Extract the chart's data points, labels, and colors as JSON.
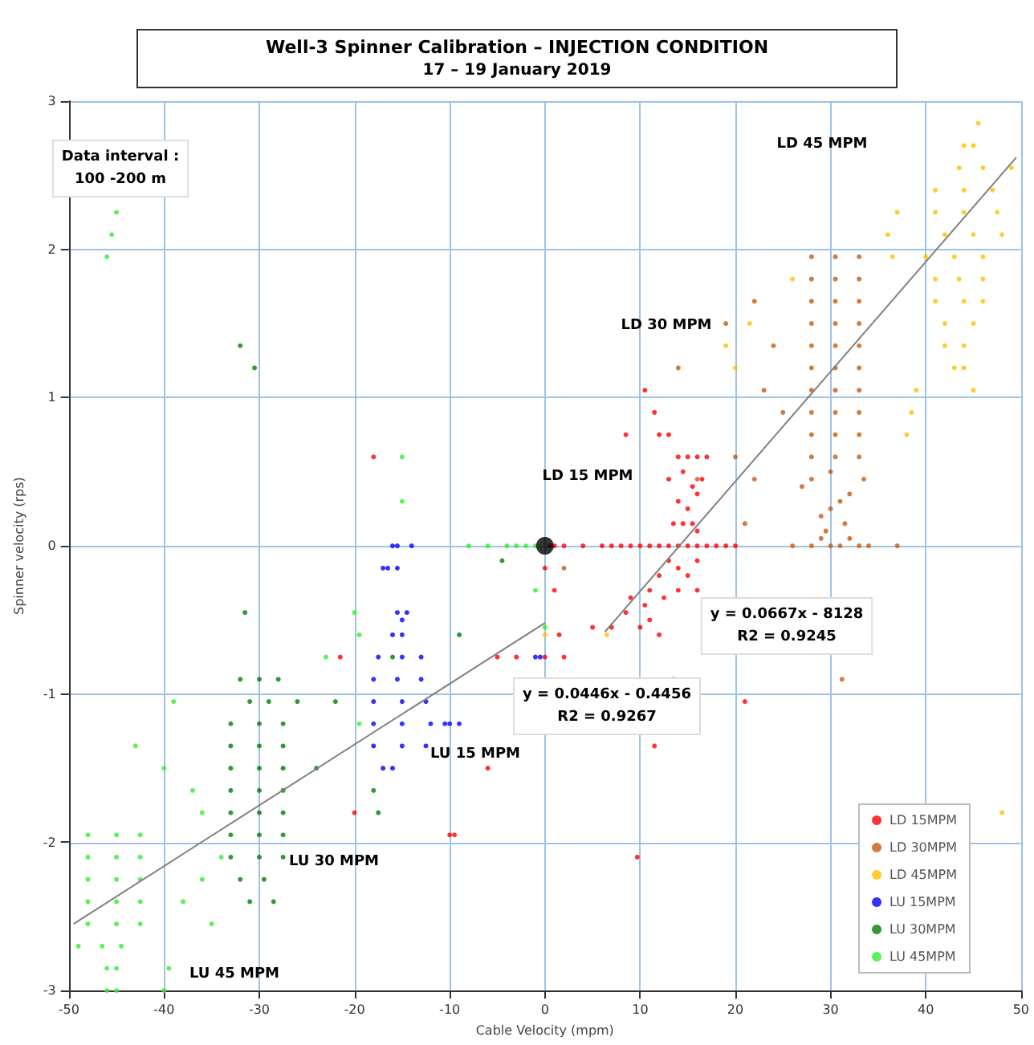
{
  "chart_data": {
    "type": "scatter",
    "title": "Well-3 Spinner Calibration – INJECTION CONDITION",
    "subtitle": "17 – 19 January 2019",
    "xlabel": "Cable Velocity (mpm)",
    "ylabel": "Spinner velocity (rps)",
    "xlim": [
      -50,
      50
    ],
    "xticks": [
      -50,
      -40,
      -30,
      -20,
      -10,
      0,
      10,
      20,
      30,
      40,
      50
    ],
    "ylim": [
      -3,
      3
    ],
    "yticks": [
      -3,
      -2,
      -1,
      0,
      1,
      2,
      3
    ],
    "grid": true,
    "legend": "bottom right",
    "marker": "circle",
    "annotations": [
      "Data interval :\n100 -200 m",
      "LD 45 MPM",
      "LD 30 MPM",
      "LD 15 MPM",
      "LU 15 MPM",
      "LU 30 MPM",
      "LU 45 MPM",
      "y = 0.0667x - 8128\nR2 = 0.9245",
      "y = 0.0446x - 0.4456\nR2 = 0.9267"
    ],
    "series": [
      {
        "name": "LD 15MPM",
        "color": "#ff0000",
        "x": [
          0.5,
          1,
          2,
          4,
          6,
          7,
          8,
          9,
          10,
          11,
          12,
          13,
          14,
          15,
          16,
          17,
          18,
          19,
          20,
          14,
          15,
          16,
          17,
          13,
          14.5,
          15.5,
          16.5,
          14,
          15,
          16,
          13.5,
          14.5,
          15.5,
          16,
          13,
          14,
          15,
          16,
          12,
          11,
          12.5,
          14,
          16,
          10.5,
          11,
          9,
          8.5,
          10,
          12,
          7,
          5,
          13.5,
          11.5,
          21,
          9.7,
          -10,
          -9.5,
          -6,
          -5,
          -20,
          -21.5,
          -18,
          10.5,
          11.5,
          12,
          13,
          8.5,
          -3,
          1,
          0,
          0,
          2,
          1.5
        ],
        "values": [
          0,
          0,
          0,
          0,
          0,
          0,
          0,
          0,
          0,
          0,
          0,
          0,
          0,
          0,
          0,
          0,
          0,
          0,
          0,
          0.6,
          0.6,
          0.6,
          0.6,
          0.45,
          0.5,
          0.4,
          0.45,
          0.3,
          0.25,
          0.35,
          0.15,
          0.15,
          0.15,
          0.1,
          -0.1,
          -0.15,
          -0.2,
          -0.1,
          -0.2,
          -0.3,
          -0.35,
          -0.3,
          -0.3,
          -0.4,
          -0.5,
          -0.35,
          -0.45,
          -0.55,
          -0.6,
          -0.55,
          -0.55,
          -0.9,
          -1.35,
          -1.05,
          -2.1,
          -1.95,
          -1.95,
          -1.5,
          -0.75,
          -1.8,
          -0.75,
          0.6,
          1.05,
          0.9,
          0.75,
          0.75,
          0.75,
          -0.75,
          -0.3,
          -0.75,
          -0.15,
          -0.75,
          -0.6
        ]
      },
      {
        "name": "LD 30MPM",
        "color": "#c55a11",
        "x": [
          28,
          30.5,
          33,
          28,
          30.5,
          33,
          28,
          30.5,
          33,
          28,
          30.5,
          33,
          28,
          30.5,
          33,
          28,
          30.5,
          33,
          28,
          30.5,
          33,
          28,
          30.5,
          33,
          28,
          30.5,
          33,
          28,
          30.5,
          33,
          26,
          28,
          30,
          31,
          33,
          34,
          37,
          29,
          32,
          28,
          30,
          31,
          29,
          32,
          33.5,
          27,
          29.5,
          31.5,
          30,
          22,
          19,
          24,
          23,
          25,
          22,
          20,
          16,
          21,
          31.2,
          2,
          14
        ],
        "values": [
          1.95,
          1.95,
          1.95,
          1.8,
          1.8,
          1.8,
          1.65,
          1.65,
          1.65,
          1.5,
          1.5,
          1.5,
          1.35,
          1.35,
          1.35,
          1.2,
          1.2,
          1.2,
          1.05,
          1.05,
          1.05,
          0.9,
          0.9,
          0.9,
          0.75,
          0.75,
          0.75,
          0.6,
          0.6,
          0.6,
          0,
          0,
          0,
          0,
          0,
          0,
          0,
          0.05,
          0.05,
          0.45,
          0.5,
          0.3,
          0.2,
          0.35,
          0.45,
          0.4,
          0.1,
          0.15,
          0.25,
          1.65,
          1.5,
          1.35,
          1.05,
          0.9,
          0.45,
          0.6,
          0.45,
          0.15,
          -0.9,
          -0.15,
          1.2
        ]
      },
      {
        "name": "LD 45MPM",
        "color": "#ffc000",
        "x": [
          44,
          45,
          43.5,
          46,
          49,
          41,
          44,
          47,
          41,
          44,
          47.5,
          42,
          45,
          48,
          36,
          40,
          43,
          46,
          36.5,
          41,
          43.5,
          46,
          41,
          44,
          46,
          42,
          45,
          42,
          44,
          43,
          44,
          45,
          45.5,
          20,
          19,
          21.5,
          26,
          38,
          38.5,
          39,
          37,
          0,
          6.5,
          48
        ],
        "values": [
          2.7,
          2.7,
          2.55,
          2.55,
          2.55,
          2.4,
          2.4,
          2.4,
          2.25,
          2.25,
          2.25,
          2.1,
          2.1,
          2.1,
          2.1,
          1.95,
          1.95,
          1.95,
          1.95,
          1.8,
          1.8,
          1.8,
          1.65,
          1.65,
          1.65,
          1.5,
          1.5,
          1.35,
          1.35,
          1.2,
          1.2,
          1.05,
          2.85,
          1.2,
          1.35,
          1.5,
          1.8,
          0.75,
          0.9,
          1.05,
          2.25,
          -0.6,
          -0.6,
          -1.8
        ]
      },
      {
        "name": "LU 15MPM",
        "color": "#0000ff",
        "x": [
          -17.5,
          -15,
          -13,
          -18,
          -15.5,
          -13,
          -18,
          -15,
          -12.5,
          -18,
          -15,
          -12,
          -10,
          -18,
          -15,
          -12.5,
          -17,
          -16,
          -16,
          -15.5,
          -14,
          -17,
          -16.5,
          -15.5,
          -15.5,
          -14.5,
          -15,
          -16,
          -15,
          -1,
          -0.5,
          -10.5,
          -9
        ],
        "values": [
          -0.75,
          -0.75,
          -0.75,
          -0.9,
          -0.9,
          -0.9,
          -1.05,
          -1.05,
          -1.05,
          -1.2,
          -1.2,
          -1.2,
          -1.2,
          -1.35,
          -1.35,
          -1.35,
          -1.5,
          -1.5,
          0,
          0,
          0,
          -0.15,
          -0.15,
          -0.15,
          -0.45,
          -0.45,
          -0.5,
          -0.6,
          -0.6,
          -0.75,
          -0.75,
          -1.2,
          -1.2
        ]
      },
      {
        "name": "LU 30MPM",
        "color": "#008000",
        "x": [
          -33,
          -30,
          -27.5,
          -33,
          -30,
          -27.5,
          -33,
          -30,
          -27.5,
          -33,
          -30,
          -27.5,
          -33,
          -30,
          -27.5,
          -33,
          -30,
          -27.5,
          -33,
          -30,
          -27.5,
          -32,
          -30,
          -28,
          -31,
          -29,
          -26,
          -32,
          -29.5,
          -31,
          -28.5,
          -31.5,
          -9,
          -16,
          -4.5,
          -32,
          -30.5,
          -24,
          -22,
          -18,
          -17.5
        ],
        "values": [
          -1.2,
          -1.2,
          -1.2,
          -1.35,
          -1.35,
          -1.35,
          -1.5,
          -1.5,
          -1.5,
          -1.65,
          -1.65,
          -1.65,
          -1.8,
          -1.8,
          -1.8,
          -1.95,
          -1.95,
          -1.95,
          -2.1,
          -2.1,
          -2.1,
          -0.9,
          -0.9,
          -0.9,
          -1.05,
          -1.05,
          -1.05,
          -2.25,
          -2.25,
          -2.4,
          -2.4,
          -0.45,
          -0.6,
          -0.75,
          -0.1,
          1.35,
          1.2,
          -1.5,
          -1.05,
          -1.65,
          -1.8
        ]
      },
      {
        "name": "LU 45MPM",
        "color": "#33ee33",
        "x": [
          -48,
          -45,
          -42.5,
          -48,
          -45,
          -42.5,
          -48,
          -45,
          -42.5,
          -48,
          -45,
          -42.5,
          -48,
          -45,
          -42.5,
          -46.5,
          -44.5,
          -46,
          -45,
          -46,
          -45,
          -49,
          -46,
          -45.5,
          -45,
          -8,
          -6,
          -4,
          -3,
          -2,
          -1,
          -39,
          -43,
          -40,
          -37,
          -36,
          -34,
          -38,
          -35,
          -36,
          -39.5,
          -40,
          -23,
          -19.5,
          -20,
          -15,
          -15,
          -19.5,
          -1,
          0
        ],
        "values": [
          -1.95,
          -1.95,
          -1.95,
          -2.1,
          -2.1,
          -2.1,
          -2.25,
          -2.25,
          -2.25,
          -2.4,
          -2.4,
          -2.4,
          -2.55,
          -2.55,
          -2.55,
          -2.7,
          -2.7,
          -2.85,
          -2.85,
          -3,
          -3,
          -2.7,
          1.95,
          2.1,
          2.25,
          0,
          0,
          0,
          0,
          0,
          0,
          -1.05,
          -1.35,
          -1.5,
          -1.65,
          -1.8,
          -2.1,
          -2.4,
          -2.55,
          -2.25,
          -2.85,
          -3,
          -0.75,
          -0.6,
          -0.45,
          0.6,
          0.3,
          -1.2,
          -0.3,
          -0.55
        ]
      },
      {
        "color": "#000000",
        "x": [
          0
        ],
        "values": [
          0
        ]
      },
      {
        "type": "line",
        "marker": "none",
        "color": "#808080",
        "x": [
          -49.5,
          0
        ],
        "values": [
          -2.55,
          -0.52
        ]
      },
      {
        "type": "line",
        "marker": "none",
        "color": "#808080",
        "x": [
          6.3,
          49.5
        ],
        "values": [
          -0.58,
          2.62
        ]
      }
    ]
  }
}
